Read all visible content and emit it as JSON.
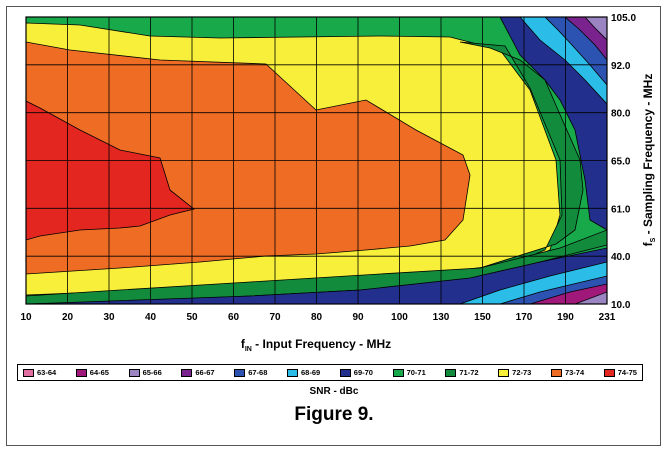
{
  "chart_data": {
    "type": "heatmap",
    "chart_style": "filled contour",
    "x_ticks": [
      "10",
      "20",
      "30",
      "40",
      "50",
      "60",
      "70",
      "80",
      "90",
      "100",
      "130",
      "150",
      "170",
      "190",
      "231"
    ],
    "x_tick_labels": [
      "10",
      "20",
      "30",
      "40",
      "50",
      "60",
      "70",
      "80",
      "90",
      "100",
      "130",
      "150",
      "170",
      "190",
      "231"
    ],
    "y_ticks": [
      "10.0",
      "40.0",
      "61.0",
      "65.0",
      "80.0",
      "92.0",
      "105.0"
    ],
    "xlabel_main": "f",
    "xlabel_sub": "IN",
    "xlabel_rest": " - Input Frequency - MHz",
    "ylabel_main": "f",
    "ylabel_sub": "S",
    "ylabel_rest": " - Sampling Frequency - MHz",
    "legend_title": "SNR - dBc",
    "legend": [
      {
        "label": "63-64",
        "color": "#e06ea0"
      },
      {
        "label": "64-65",
        "color": "#a0197a"
      },
      {
        "label": "65-66",
        "color": "#9a84c2"
      },
      {
        "label": "66-67",
        "color": "#7a238e"
      },
      {
        "label": "67-68",
        "color": "#2d53b2"
      },
      {
        "label": "68-69",
        "color": "#2bbce8"
      },
      {
        "label": "69-70",
        "color": "#232f8c"
      },
      {
        "label": "70-71",
        "color": "#18a94a"
      },
      {
        "label": "71-72",
        "color": "#138b3d"
      },
      {
        "label": "72-73",
        "color": "#f7ef3a"
      },
      {
        "label": "73-74",
        "color": "#ef6c25"
      },
      {
        "label": "74-75",
        "color": "#e3261f"
      }
    ],
    "regions": [
      {
        "band": "73-74",
        "color": "#ef6c25",
        "x": [
          10,
          20,
          60,
          70,
          80,
          90,
          100,
          100,
          90,
          80,
          60,
          40,
          20,
          10
        ],
        "y": [
          85,
          90,
          92,
          88,
          84,
          75,
          69,
          52,
          48,
          47,
          45,
          43,
          41,
          40
        ]
      },
      {
        "band": "74-75",
        "color": "#e3261f",
        "x": [
          10,
          20,
          30,
          35,
          40,
          45,
          40,
          30,
          20,
          10
        ],
        "y": [
          82,
          76,
          72,
          67,
          62,
          60,
          57,
          55,
          52,
          50
        ]
      },
      {
        "band": "71-72",
        "color": "#138b3d",
        "x": [
          130,
          150,
          170,
          190,
          231,
          231,
          190,
          170,
          150
        ],
        "y": [
          90,
          80,
          71,
          62,
          57,
          45,
          40,
          38,
          42
        ]
      },
      {
        "band": "69-70",
        "color": "#232f8c",
        "x": [
          150,
          190,
          231,
          231,
          190
        ],
        "y": [
          105,
          94,
          86,
          60,
          70
        ]
      },
      {
        "band": "68-69",
        "color": "#2bbce8",
        "x": [
          190,
          231,
          231,
          200
        ],
        "y": [
          105,
          103,
          92,
          98
        ]
      },
      {
        "band": "66-67",
        "color": "#7a238e",
        "x": [
          210,
          231,
          231
        ],
        "y": [
          105,
          105,
          100
        ]
      },
      {
        "band": "64-65",
        "color": "#a0197a",
        "x": [
          190,
          231,
          231
        ],
        "y": [
          10,
          22,
          10
        ]
      }
    ]
  },
  "figure_title": "Figure 9."
}
